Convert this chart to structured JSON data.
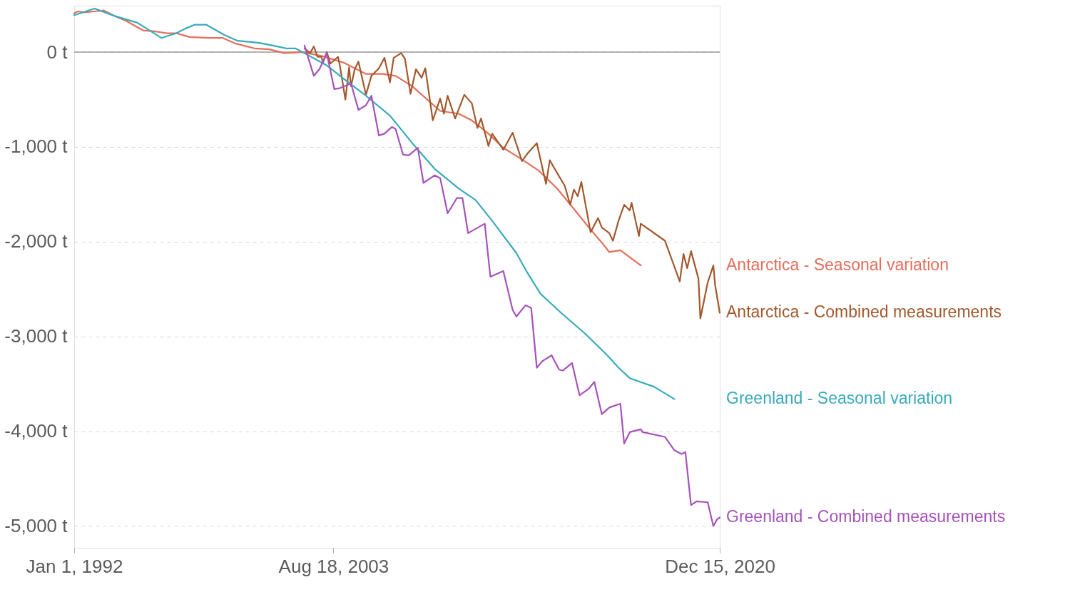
{
  "chart_data": {
    "type": "line",
    "xlim": [
      "1992-01-01",
      "2020-12-15"
    ],
    "xticks": [
      {
        "value": "1992-01-01",
        "label": "Jan 1, 1992"
      },
      {
        "value": "2003-08-18",
        "label": "Aug 18, 2003"
      },
      {
        "value": "2020-12-15",
        "label": "Dec 15, 2020"
      }
    ],
    "ylim": [
      -5230,
      490
    ],
    "yticks": [
      {
        "value": 0,
        "label": "0 t"
      },
      {
        "value": -1000,
        "label": "-1,000 t"
      },
      {
        "value": -2000,
        "label": "-2,000 t"
      },
      {
        "value": -3000,
        "label": "-3,000 t"
      },
      {
        "value": -4000,
        "label": "-4,000 t"
      },
      {
        "value": -5000,
        "label": "-5,000 t"
      }
    ],
    "grid": "y",
    "ref_lines": [
      {
        "axis": "y",
        "value": 0,
        "color": "#9a9a9a"
      }
    ],
    "series": [
      {
        "name": "Antarctica - Seasonal variation",
        "color": "#e56e5a",
        "x": [
          "1992-01",
          "1992-03",
          "1992-06",
          "1992-12",
          "1993-05",
          "1993-11",
          "1994-05",
          "1995-02",
          "1995-08",
          "1996-03",
          "1996-08",
          "1997-03",
          "1998-01",
          "1998-09",
          "1999-04",
          "2000-02",
          "2000-10",
          "2001-06",
          "2002-04",
          "2003-02",
          "2004-02",
          "2005-02",
          "2005-11",
          "2006-06",
          "2007-03",
          "2007-11",
          "2008-06",
          "2009-04",
          "2009-11",
          "2010-08",
          "2011-04",
          "2012-01",
          "2012-11",
          "2013-09",
          "2014-05",
          "2015-02",
          "2015-09",
          "2016-01",
          "2016-07",
          "2017-06"
        ],
        "values": [
          410,
          430,
          420,
          430,
          440,
          380,
          330,
          230,
          220,
          200,
          200,
          160,
          150,
          150,
          90,
          40,
          30,
          -10,
          0,
          -40,
          -110,
          -230,
          -230,
          -250,
          -360,
          -500,
          -620,
          -650,
          -720,
          -860,
          -1010,
          -1120,
          -1250,
          -1440,
          -1630,
          -1850,
          -2010,
          -2110,
          -2090,
          -2250
        ]
      },
      {
        "name": "Antarctica - Combined measurements",
        "color": "#a2582c",
        "x": [
          "2002-05",
          "2002-08",
          "2002-10",
          "2002-12",
          "2003-02",
          "2003-03",
          "2003-05",
          "2003-07",
          "2003-11",
          "2003-12",
          "2004-03",
          "2004-05",
          "2004-06",
          "2004-08",
          "2004-10",
          "2005-02",
          "2005-05",
          "2005-09",
          "2005-12",
          "2006-03",
          "2006-05",
          "2006-09",
          "2006-11",
          "2007-02",
          "2007-05",
          "2007-08",
          "2007-10",
          "2008-02",
          "2008-06",
          "2008-08",
          "2008-10",
          "2009-02",
          "2009-07",
          "2009-11",
          "2010-02",
          "2010-04",
          "2010-08",
          "2010-10",
          "2011-04",
          "2011-09",
          "2012-02",
          "2012-05",
          "2012-10",
          "2013-03",
          "2013-05",
          "2013-07",
          "2014-01",
          "2014-04",
          "2014-06",
          "2014-08",
          "2014-10",
          "2015-03",
          "2015-07",
          "2015-09",
          "2016-01",
          "2016-03",
          "2016-06",
          "2016-09",
          "2016-12",
          "2017-01",
          "2017-05",
          "2017-06",
          "2018-07",
          "2018-12",
          "2019-03",
          "2019-05",
          "2019-07",
          "2019-09",
          "2020-01",
          "2020-02",
          "2020-06",
          "2020-09",
          "2020-10",
          "2020-12-15"
        ],
        "values": [
          40,
          -10,
          60,
          -50,
          -50,
          -110,
          0,
          -120,
          -50,
          -140,
          -500,
          -160,
          -360,
          -180,
          -100,
          -450,
          -250,
          -170,
          -60,
          -320,
          -60,
          -10,
          -70,
          -440,
          -180,
          -270,
          -170,
          -720,
          -490,
          -650,
          -460,
          -700,
          -450,
          -540,
          -800,
          -700,
          -990,
          -860,
          -1030,
          -850,
          -1150,
          -1070,
          -960,
          -1390,
          -1140,
          -1210,
          -1410,
          -1610,
          -1450,
          -1520,
          -1370,
          -1900,
          -1750,
          -1850,
          -1910,
          -1990,
          -1780,
          -1610,
          -1670,
          -1590,
          -1940,
          -1810,
          -1990,
          -2260,
          -2420,
          -2130,
          -2280,
          -2100,
          -2390,
          -2810,
          -2430,
          -2250,
          -2460,
          -2750
        ]
      },
      {
        "name": "Greenland - Seasonal variation",
        "color": "#38aaba",
        "x": [
          "1992-01",
          "1992-12",
          "1993-11",
          "1994-11",
          "1995-12",
          "1996-08",
          "1997-01",
          "1997-06",
          "1997-12",
          "1998-10",
          "1999-05",
          "2000-04",
          "2000-12",
          "2001-07",
          "2001-12",
          "2002-04",
          "2003-05",
          "2004-02",
          "2005-02",
          "2006-03",
          "2007-03",
          "2008-03",
          "2009-04",
          "2010-01",
          "2010-10",
          "2011-11",
          "2012-05",
          "2012-12",
          "2013-11",
          "2014-12",
          "2015-12",
          "2016-06",
          "2016-12",
          "2018-01",
          "2018-12"
        ],
        "values": [
          390,
          460,
          380,
          310,
          150,
          200,
          250,
          290,
          290,
          180,
          120,
          100,
          70,
          40,
          40,
          0,
          -140,
          -280,
          -460,
          -670,
          -960,
          -1230,
          -1440,
          -1560,
          -1780,
          -2120,
          -2330,
          -2550,
          -2750,
          -2970,
          -3200,
          -3330,
          -3440,
          -3530,
          -3660
        ]
      },
      {
        "name": "Greenland - Combined measurements",
        "color": "#a652ba",
        "x": [
          "2002-05",
          "2002-10",
          "2003-01",
          "2003-05",
          "2003-09",
          "2003-12",
          "2004-06",
          "2004-10",
          "2005-02",
          "2005-05",
          "2005-09",
          "2005-12",
          "2006-04",
          "2006-06",
          "2006-10",
          "2007-01",
          "2007-06",
          "2007-09",
          "2008-03",
          "2008-06",
          "2008-10",
          "2009-03",
          "2009-06",
          "2009-09",
          "2010-06",
          "2010-09",
          "2011-04",
          "2011-09",
          "2011-11",
          "2012-04",
          "2012-07",
          "2012-10",
          "2013-01",
          "2013-06",
          "2013-10",
          "2013-12",
          "2014-05",
          "2014-09",
          "2015-02",
          "2015-05",
          "2015-09",
          "2016-01",
          "2016-07",
          "2016-09",
          "2016-12",
          "2017-06",
          "2017-07",
          "2018-07",
          "2018-12",
          "2019-04",
          "2019-06",
          "2019-09",
          "2019-12",
          "2020-06",
          "2020-09",
          "2020-11",
          "2020-12-15"
        ],
        "values": [
          70,
          -250,
          -180,
          -10,
          -390,
          -380,
          -330,
          -610,
          -560,
          -460,
          -880,
          -860,
          -790,
          -810,
          -1080,
          -1090,
          -1010,
          -1380,
          -1300,
          -1330,
          -1700,
          -1540,
          -1540,
          -1910,
          -1810,
          -2370,
          -2310,
          -2720,
          -2790,
          -2670,
          -2700,
          -3330,
          -3260,
          -3200,
          -3350,
          -3360,
          -3280,
          -3620,
          -3550,
          -3480,
          -3820,
          -3750,
          -3710,
          -4130,
          -4010,
          -3980,
          -4010,
          -4060,
          -4200,
          -4240,
          -4220,
          -4780,
          -4740,
          -4750,
          -5000,
          -4930,
          -4910
        ]
      }
    ]
  }
}
